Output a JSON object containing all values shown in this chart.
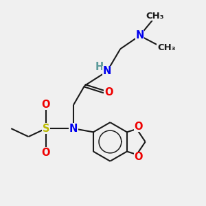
{
  "bg_color": "#f0f0f0",
  "bond_color": "#1a1a1a",
  "bond_width": 1.5,
  "atom_colors": {
    "N": "#0000ee",
    "O": "#ee0000",
    "S": "#bbbb00",
    "H": "#5a9a9a",
    "C": "#1a1a1a"
  },
  "font_size_atom": 10.5,
  "font_size_small": 9.5,
  "fig_size": [
    3.0,
    3.0
  ],
  "dpi": 100
}
